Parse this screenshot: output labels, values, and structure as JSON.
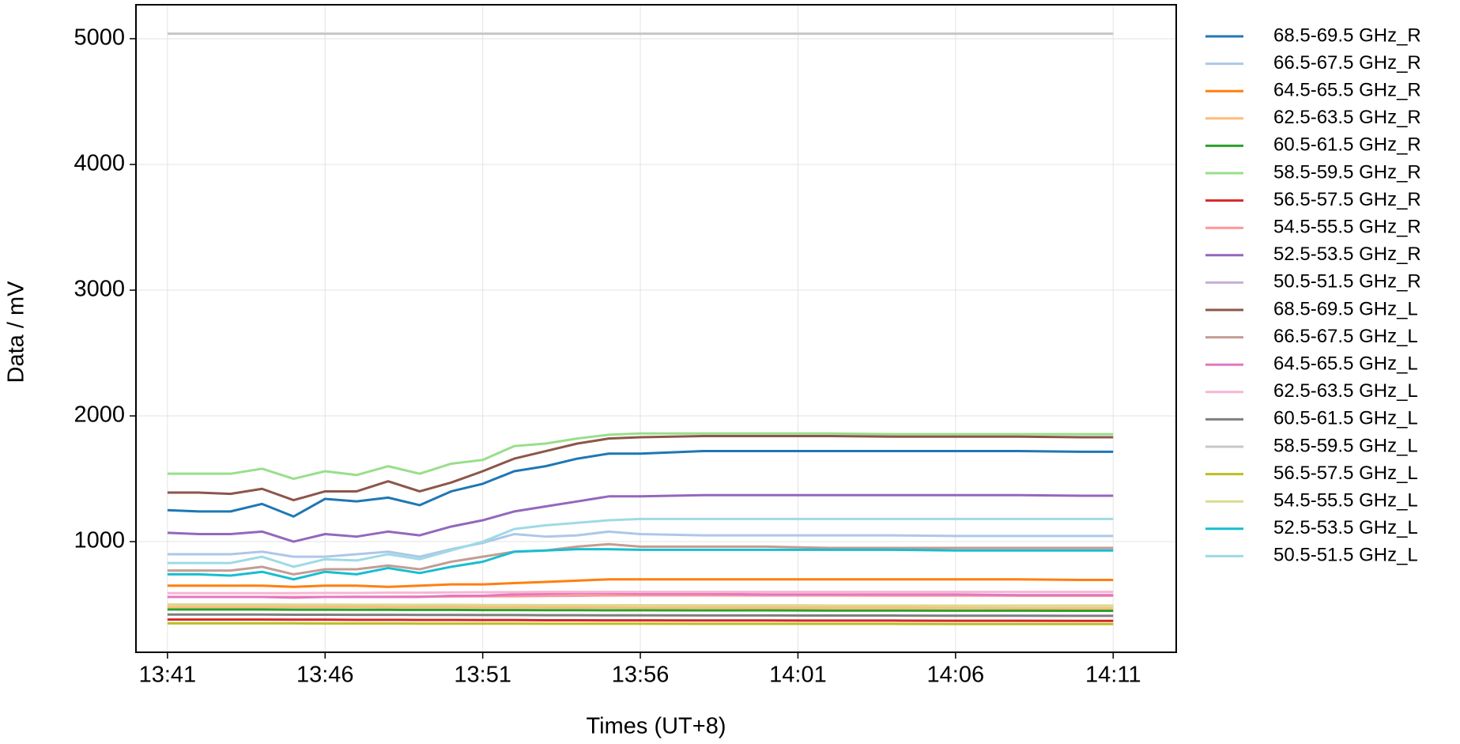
{
  "chart_data": {
    "type": "line",
    "xlabel": "Times (UT+8)",
    "ylabel": "Data / mV",
    "x": [
      "13:41",
      "13:42",
      "13:43",
      "13:44",
      "13:45",
      "13:46",
      "13:47",
      "13:48",
      "13:49",
      "13:50",
      "13:51",
      "13:52",
      "13:53",
      "13:54",
      "13:55",
      "13:56",
      "13:58",
      "14:00",
      "14:02",
      "14:04",
      "14:06",
      "14:08",
      "14:10",
      "14:11"
    ],
    "xlim": [
      "13:40",
      "14:13"
    ],
    "xticks": [
      "13:41",
      "13:46",
      "13:51",
      "13:56",
      "14:01",
      "14:06",
      "14:11"
    ],
    "ylim": [
      120,
      5270
    ],
    "yticks": [
      1000,
      2000,
      3000,
      4000,
      5000
    ],
    "grid": true,
    "legend": "outside right",
    "series": [
      {
        "name": "68.5-69.5 GHz_R",
        "color": "#1f77b4",
        "values": [
          1250,
          1240,
          1240,
          1300,
          1200,
          1340,
          1320,
          1350,
          1290,
          1400,
          1460,
          1560,
          1600,
          1660,
          1700,
          1700,
          1720,
          1720,
          1720,
          1720,
          1720,
          1720,
          1715,
          1715
        ]
      },
      {
        "name": "66.5-67.5 GHz_R",
        "color": "#aec7e8",
        "values": [
          900,
          900,
          900,
          920,
          880,
          880,
          900,
          920,
          880,
          940,
          990,
          1060,
          1040,
          1050,
          1080,
          1060,
          1050,
          1050,
          1050,
          1050,
          1045,
          1045,
          1045,
          1045
        ]
      },
      {
        "name": "64.5-65.5 GHz_R",
        "color": "#ff7f0e",
        "values": [
          650,
          650,
          650,
          650,
          640,
          650,
          650,
          640,
          650,
          660,
          660,
          670,
          680,
          690,
          700,
          700,
          700,
          700,
          700,
          700,
          700,
          700,
          695,
          695
        ]
      },
      {
        "name": "62.5-63.5 GHz_R",
        "color": "#ffbb78",
        "values": [
          480,
          480,
          480,
          480,
          480,
          480,
          480,
          478,
          478,
          478,
          476,
          476,
          476,
          475,
          475,
          474,
          474,
          473,
          472,
          472,
          471,
          470,
          470,
          470
        ]
      },
      {
        "name": "60.5-61.5 GHz_R",
        "color": "#2ca02c",
        "values": [
          460,
          460,
          460,
          460,
          459,
          459,
          458,
          458,
          457,
          457,
          456,
          456,
          455,
          455,
          454,
          454,
          453,
          453,
          452,
          452,
          451,
          451,
          450,
          450
        ]
      },
      {
        "name": "58.5-59.5 GHz_R",
        "color": "#98df8a",
        "values": [
          1540,
          1540,
          1540,
          1580,
          1500,
          1560,
          1530,
          1600,
          1540,
          1620,
          1650,
          1760,
          1780,
          1820,
          1850,
          1860,
          1860,
          1860,
          1860,
          1855,
          1855,
          1855,
          1855,
          1855
        ]
      },
      {
        "name": "56.5-57.5 GHz_R",
        "color": "#d62728",
        "values": [
          380,
          380,
          380,
          380,
          379,
          379,
          378,
          378,
          377,
          377,
          376,
          376,
          375,
          375,
          374,
          374,
          373,
          373,
          372,
          372,
          371,
          371,
          370,
          370
        ]
      },
      {
        "name": "54.5-55.5 GHz_R",
        "color": "#ff9896",
        "values": [
          560,
          560,
          560,
          560,
          560,
          560,
          562,
          562,
          563,
          563,
          565,
          566,
          568,
          570,
          572,
          573,
          573,
          572,
          572,
          571,
          571,
          570,
          570,
          570
        ]
      },
      {
        "name": "52.5-53.5 GHz_R",
        "color": "#9467bd",
        "values": [
          1070,
          1060,
          1060,
          1080,
          1000,
          1060,
          1040,
          1080,
          1050,
          1120,
          1170,
          1240,
          1280,
          1320,
          1360,
          1360,
          1370,
          1370,
          1370,
          1370,
          1370,
          1370,
          1365,
          1365
        ]
      },
      {
        "name": "50.5-51.5 GHz_R",
        "color": "#c5b0d5",
        "values": [
          500,
          500,
          500,
          500,
          498,
          498,
          497,
          497,
          496,
          496,
          495,
          495,
          494,
          494,
          493,
          493,
          492,
          492,
          491,
          491,
          490,
          490,
          490,
          490
        ]
      },
      {
        "name": "68.5-69.5 GHz_L",
        "color": "#8c564b",
        "values": [
          1390,
          1390,
          1380,
          1420,
          1330,
          1400,
          1400,
          1480,
          1400,
          1470,
          1560,
          1660,
          1720,
          1780,
          1820,
          1830,
          1840,
          1840,
          1840,
          1835,
          1835,
          1835,
          1830,
          1830
        ]
      },
      {
        "name": "66.5-67.5 GHz_L",
        "color": "#c49c94",
        "values": [
          770,
          770,
          770,
          800,
          740,
          780,
          780,
          810,
          780,
          840,
          880,
          920,
          930,
          960,
          980,
          960,
          960,
          960,
          950,
          950,
          950,
          950,
          950,
          950
        ]
      },
      {
        "name": "64.5-65.5 GHz_L",
        "color": "#e377c2",
        "values": [
          560,
          560,
          560,
          560,
          555,
          560,
          560,
          560,
          560,
          570,
          570,
          580,
          585,
          590,
          590,
          585,
          585,
          580,
          580,
          580,
          580,
          575,
          575,
          575
        ]
      },
      {
        "name": "62.5-63.5 GHz_L",
        "color": "#f7b6d2",
        "values": [
          590,
          590,
          590,
          590,
          590,
          592,
          592,
          594,
          594,
          596,
          597,
          598,
          600,
          600,
          600,
          600,
          600,
          600,
          600,
          600,
          600,
          600,
          600,
          600
        ]
      },
      {
        "name": "60.5-61.5 GHz_L",
        "color": "#7f7f7f",
        "values": [
          420,
          420,
          420,
          420,
          419,
          419,
          418,
          418,
          417,
          417,
          416,
          416,
          415,
          415,
          414,
          414,
          413,
          413,
          412,
          412,
          411,
          411,
          410,
          410
        ]
      },
      {
        "name": "58.5-59.5 GHz_L",
        "color": "#c7c7c7",
        "values": [
          5040,
          5040,
          5040,
          5040,
          5040,
          5040,
          5040,
          5040,
          5040,
          5040,
          5040,
          5040,
          5040,
          5040,
          5040,
          5040,
          5040,
          5040,
          5040,
          5040,
          5040,
          5040,
          5040,
          5040
        ]
      },
      {
        "name": "56.5-57.5 GHz_L",
        "color": "#bcbd22",
        "values": [
          350,
          350,
          350,
          350,
          350,
          349,
          349,
          349,
          348,
          348,
          348,
          348,
          347,
          347,
          347,
          347,
          346,
          346,
          346,
          346,
          345,
          345,
          345,
          345
        ]
      },
      {
        "name": "54.5-55.5 GHz_L",
        "color": "#dbdb8d",
        "values": [
          500,
          500,
          500,
          500,
          499,
          499,
          498,
          498,
          497,
          497,
          496,
          496,
          495,
          495,
          494,
          494,
          493,
          493,
          492,
          492,
          491,
          491,
          490,
          490
        ]
      },
      {
        "name": "52.5-53.5 GHz_L",
        "color": "#17becf",
        "values": [
          740,
          740,
          730,
          760,
          700,
          760,
          740,
          790,
          750,
          800,
          840,
          920,
          930,
          940,
          940,
          935,
          935,
          935,
          935,
          935,
          930,
          930,
          930,
          930
        ]
      },
      {
        "name": "50.5-51.5 GHz_L",
        "color": "#9edae5",
        "values": [
          830,
          830,
          830,
          880,
          800,
          860,
          850,
          900,
          860,
          930,
          1000,
          1100,
          1130,
          1150,
          1170,
          1180,
          1180,
          1180,
          1180,
          1180,
          1180,
          1180,
          1180,
          1180
        ]
      }
    ]
  }
}
